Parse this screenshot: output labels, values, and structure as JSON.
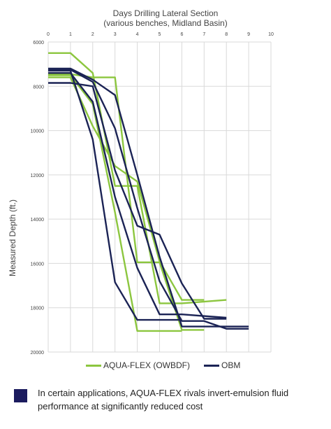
{
  "chart_data": {
    "type": "line",
    "title": "Days Drilling Lateral Section",
    "subtitle": "(various benches, Midland Basin)",
    "xlabel": "",
    "ylabel": "Measured Depth (ft.)",
    "xlim": [
      0,
      10
    ],
    "ylim": [
      6000,
      20000
    ],
    "y_inverted": true,
    "x_ticks": [
      "0",
      "1",
      "2",
      "3",
      "4",
      "5",
      "6",
      "7",
      "8",
      "9",
      "10"
    ],
    "y_ticks": [
      "6000",
      "8000",
      "10000",
      "12000",
      "14000",
      "16000",
      "18000",
      "20000"
    ],
    "x_axis_position": "top",
    "grid": true,
    "legend_position": "bottom",
    "colors": {
      "aqua": "#8cc63f",
      "obm": "#1b2355"
    },
    "legend": [
      {
        "label": "AQUA-FLEX (OWBDF)",
        "color": "#8cc63f"
      },
      {
        "label": "OBM",
        "color": "#1b2355"
      }
    ],
    "series": [
      {
        "group": "AQUA-FLEX (OWBDF)",
        "color": "#8cc63f",
        "points": [
          [
            0,
            6500
          ],
          [
            1,
            6500
          ],
          [
            2,
            7400
          ],
          [
            3,
            12500
          ],
          [
            4,
            12500
          ],
          [
            5,
            17800
          ],
          [
            6,
            17800
          ],
          [
            8,
            17650
          ]
        ]
      },
      {
        "group": "AQUA-FLEX (OWBDF)",
        "color": "#8cc63f",
        "points": [
          [
            0,
            7450
          ],
          [
            1,
            7450
          ],
          [
            2,
            7600
          ],
          [
            3,
            7600
          ],
          [
            4,
            15950
          ],
          [
            5,
            15950
          ],
          [
            6,
            19000
          ],
          [
            7,
            19000
          ]
        ]
      },
      {
        "group": "AQUA-FLEX (OWBDF)",
        "color": "#8cc63f",
        "points": [
          [
            0,
            7600
          ],
          [
            1,
            7600
          ],
          [
            2,
            9800
          ],
          [
            3,
            11600
          ],
          [
            4,
            12300
          ],
          [
            5,
            15900
          ],
          [
            6,
            17650
          ],
          [
            7,
            17650
          ]
        ]
      },
      {
        "group": "AQUA-FLEX (OWBDF)",
        "color": "#8cc63f",
        "points": [
          [
            0,
            7500
          ],
          [
            1,
            7500
          ],
          [
            2,
            8800
          ],
          [
            3,
            13700
          ],
          [
            4,
            19050
          ],
          [
            6,
            19050
          ]
        ]
      },
      {
        "group": "OBM",
        "color": "#1b2355",
        "points": [
          [
            0,
            7200
          ],
          [
            1,
            7200
          ],
          [
            2,
            7700
          ],
          [
            3,
            8400
          ],
          [
            4,
            12000
          ],
          [
            5,
            15700
          ],
          [
            6,
            18850
          ],
          [
            9,
            18850
          ]
        ]
      },
      {
        "group": "OBM",
        "color": "#1b2355",
        "points": [
          [
            0,
            7300
          ],
          [
            1,
            7300
          ],
          [
            2,
            10400
          ],
          [
            3,
            16850
          ],
          [
            4,
            18550
          ],
          [
            6,
            18550
          ]
        ]
      },
      {
        "group": "OBM",
        "color": "#1b2355",
        "points": [
          [
            0,
            7850
          ],
          [
            1,
            7850
          ],
          [
            2,
            8000
          ],
          [
            3,
            11800
          ],
          [
            4,
            14300
          ],
          [
            5,
            14700
          ],
          [
            6,
            16900
          ],
          [
            7,
            18500
          ],
          [
            8,
            18500
          ]
        ]
      },
      {
        "group": "OBM",
        "color": "#1b2355",
        "points": [
          [
            0,
            7400
          ],
          [
            1,
            7400
          ],
          [
            2,
            8700
          ],
          [
            3,
            13000
          ],
          [
            4,
            16200
          ],
          [
            5,
            18300
          ],
          [
            6,
            18300
          ],
          [
            8,
            18450
          ]
        ]
      },
      {
        "group": "OBM",
        "color": "#1b2355",
        "points": [
          [
            0,
            7250
          ],
          [
            1,
            7250
          ],
          [
            2,
            7800
          ],
          [
            3,
            9900
          ],
          [
            4,
            13500
          ],
          [
            5,
            16800
          ],
          [
            6,
            18600
          ],
          [
            7,
            18600
          ],
          [
            8,
            18950
          ],
          [
            9,
            18950
          ]
        ]
      }
    ]
  },
  "note": {
    "text": "In certain applications, AQUA-FLEX rivals invert-emulsion fluid performance at significantly reduced cost",
    "square_color": "#1b1b5e"
  }
}
